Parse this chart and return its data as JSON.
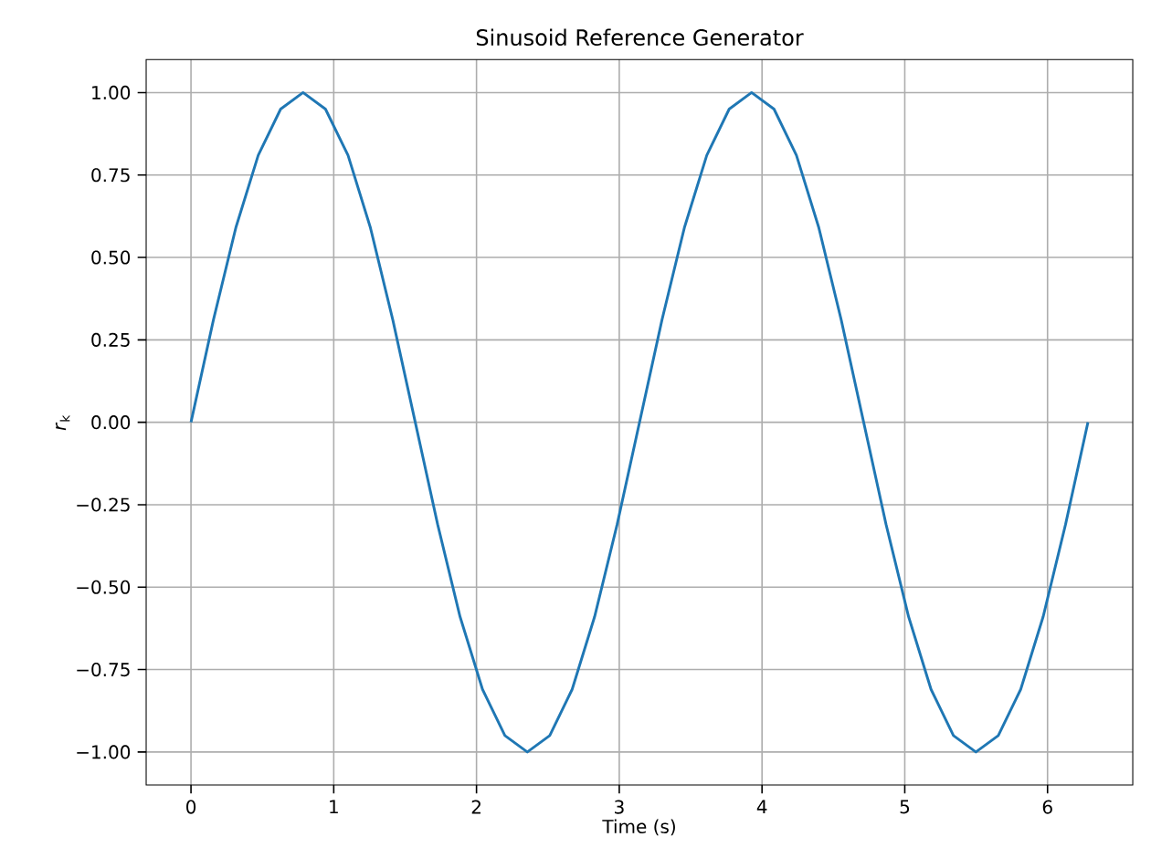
{
  "chart_data": {
    "type": "line",
    "title": "Sinusoid Reference Generator",
    "xlabel": "Time (s)",
    "ylabel": "*r*$_{k}$",
    "x": [
      0,
      0.157,
      0.314,
      0.471,
      0.628,
      0.785,
      0.942,
      1.1,
      1.257,
      1.414,
      1.571,
      1.728,
      1.885,
      2.042,
      2.199,
      2.356,
      2.513,
      2.67,
      2.827,
      2.985,
      3.142,
      3.299,
      3.456,
      3.613,
      3.77,
      3.927,
      4.084,
      4.241,
      4.398,
      4.555,
      4.712,
      4.869,
      5.027,
      5.184,
      5.341,
      5.498,
      5.655,
      5.812,
      5.969,
      6.126,
      6.283
    ],
    "series": [
      {
        "color": "#1f77b4",
        "values": [
          0,
          0.31,
          0.59,
          0.81,
          0.95,
          1,
          0.95,
          0.81,
          0.59,
          0.31,
          0,
          -0.31,
          -0.59,
          -0.81,
          -0.95,
          -1,
          -0.95,
          -0.81,
          -0.59,
          -0.31,
          0,
          0.31,
          0.59,
          0.81,
          0.95,
          1,
          0.95,
          0.81,
          0.59,
          0.31,
          0,
          -0.31,
          -0.59,
          -0.81,
          -0.95,
          -1,
          -0.95,
          -0.81,
          -0.59,
          -0.31,
          0
        ]
      }
    ],
    "xlim": [
      -0.314,
      6.597
    ],
    "ylim": [
      -1.1,
      1.1
    ],
    "xticks": [
      0,
      1,
      2,
      3,
      4,
      5,
      6
    ],
    "yticks": [
      {
        "value": -1,
        "label": "−1.00"
      },
      {
        "value": -0.75,
        "label": "−0.75"
      },
      {
        "value": -0.5,
        "label": "−0.50"
      },
      {
        "value": -0.25,
        "label": "−0.25"
      },
      {
        "value": 0,
        "label": "0.00"
      },
      {
        "value": 0.25,
        "label": "0.25"
      },
      {
        "value": 0.5,
        "label": "0.50"
      },
      {
        "value": 0.75,
        "label": "0.75"
      },
      {
        "value": 1,
        "label": "1.00"
      }
    ],
    "grid": true,
    "marker": "none",
    "line_style": "solid"
  }
}
